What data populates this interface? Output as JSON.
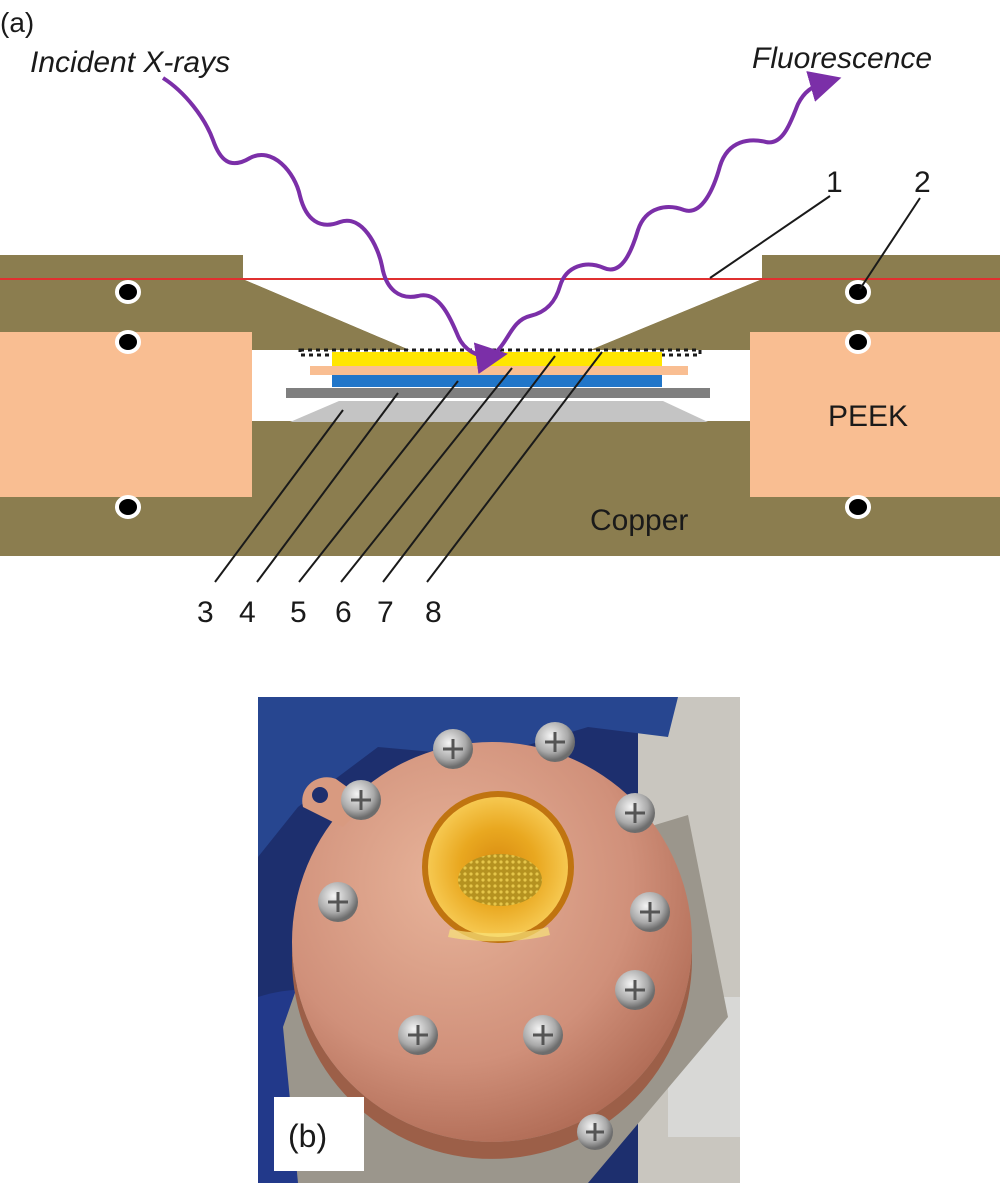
{
  "panel_a": {
    "label": "(a)",
    "incident_label": "Incident X-rays",
    "fluorescence_label": "Fluorescence",
    "peek_label": "PEEK",
    "copper_label": "Copper",
    "callouts": [
      "1",
      "2",
      "3",
      "4",
      "5",
      "6",
      "7",
      "8"
    ],
    "colors": {
      "copper": "#8b7d4f",
      "peek": "#f9be92",
      "wave": "#7b2fa8",
      "window_line": "#e03030",
      "blue_layer": "#2176c9",
      "yellow_layer": "#ffe600",
      "gray_layer": "#7f7f7f",
      "light_gray_layer": "#c4c4c4"
    }
  },
  "panel_b": {
    "label": "(b)",
    "screw_count": 10
  }
}
